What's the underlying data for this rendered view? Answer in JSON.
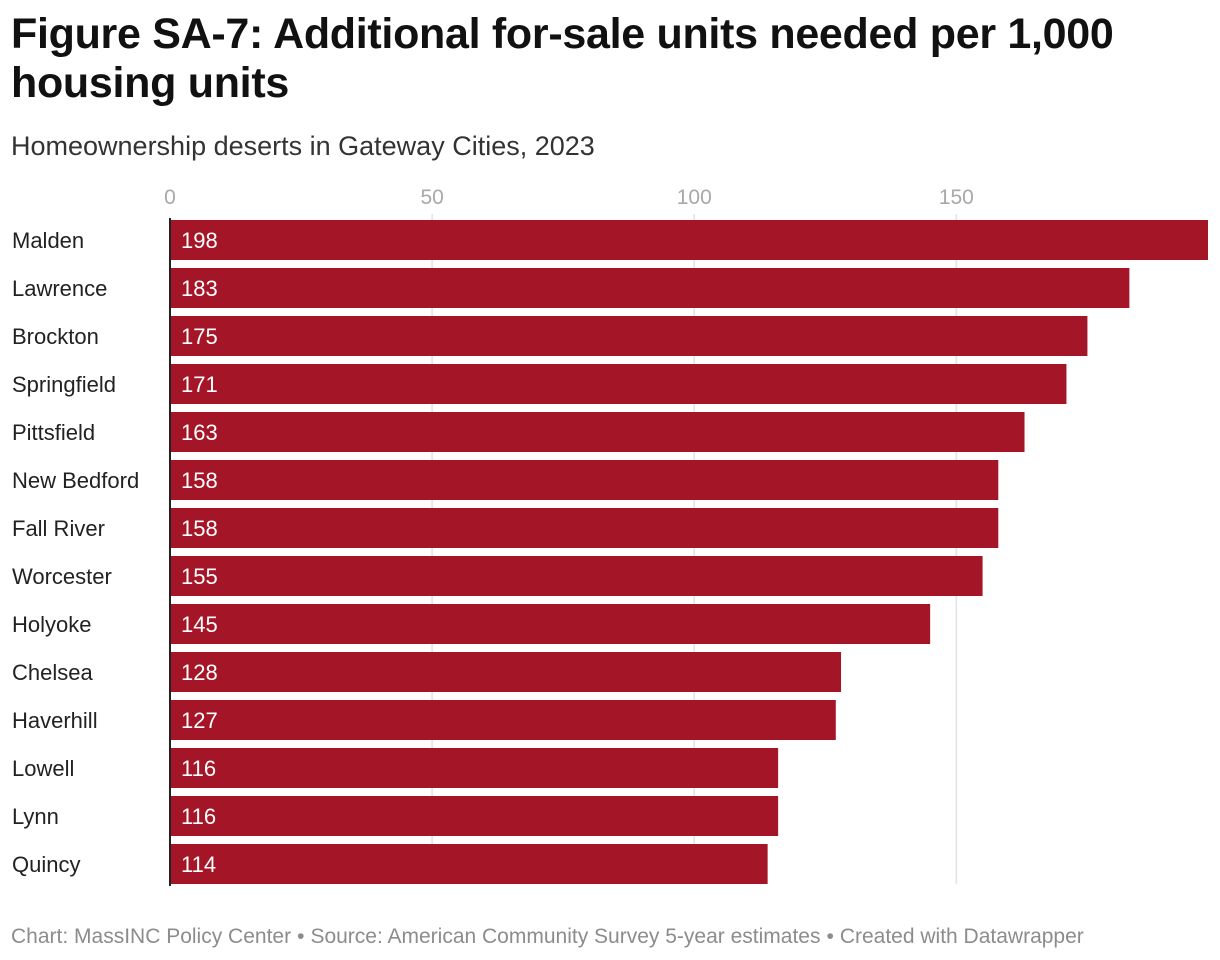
{
  "title": "Figure SA-7: Additional for-sale units needed per 1,000 housing units",
  "subtitle": "Homeownership deserts in Gateway Cities, 2023",
  "footer": {
    "chart_by": "Chart: MassINC Policy Center",
    "source": "Source: American Community Survey 5-year estimates",
    "created": "Created with Datawrapper",
    "separator": "•"
  },
  "colors": {
    "bar": "#a51528",
    "bar_label": "#ffffff",
    "grid": "#e3e3e3",
    "axis_tick": "#a8a8a8",
    "category_label": "#222222",
    "baseline": "#222222"
  },
  "chart_data": {
    "type": "bar",
    "orientation": "horizontal",
    "title": "Figure SA-7: Additional for-sale units needed per 1,000 housing units",
    "subtitle": "Homeownership deserts in Gateway Cities, 2023",
    "xlabel": "",
    "ylabel": "",
    "xlim": [
      0,
      198
    ],
    "xticks": [
      0,
      50,
      100,
      150
    ],
    "grid": true,
    "categories": [
      "Malden",
      "Lawrence",
      "Brockton",
      "Springfield",
      "Pittsfield",
      "New Bedford",
      "Fall River",
      "Worcester",
      "Holyoke",
      "Chelsea",
      "Haverhill",
      "Lowell",
      "Lynn",
      "Quincy"
    ],
    "values": [
      198,
      183,
      175,
      171,
      163,
      158,
      158,
      155,
      145,
      128,
      127,
      116,
      116,
      114
    ]
  }
}
